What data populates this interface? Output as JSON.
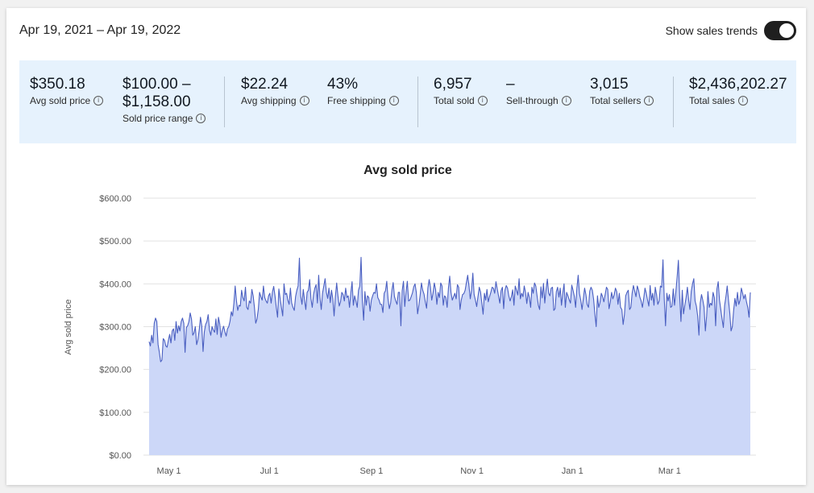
{
  "header": {
    "date_range": "Apr 19, 2021 – Apr 19, 2022",
    "trend_label": "Show sales trends",
    "trend_on": true
  },
  "stats": [
    {
      "value": "$350.18",
      "label": "Avg sold price"
    },
    {
      "value": "$100.00 –",
      "value2": "$1,158.00",
      "label": "Sold price range"
    },
    {
      "value": "$22.24",
      "label": "Avg shipping"
    },
    {
      "value": "43%",
      "label": "Free shipping"
    },
    {
      "value": "6,957",
      "label": "Total sold"
    },
    {
      "value": "–",
      "label": "Sell-through"
    },
    {
      "value": "3,015",
      "label": "Total sellers"
    },
    {
      "value": "$2,436,202.27",
      "label": "Total sales"
    }
  ],
  "info_glyph": "i",
  "colors": {
    "line": "#4a5fc1",
    "fill": "#ccd7f8",
    "panel": "#e6f2fd",
    "toggle": "#1f1f1f"
  },
  "chart_data": {
    "type": "area",
    "title": "Avg sold price",
    "ylabel": "Avg sold price",
    "xlabel": "",
    "ylim": [
      0,
      600
    ],
    "yticks": [
      "$0.00",
      "$100.00",
      "$200.00",
      "$300.00",
      "$400.00",
      "$500.00",
      "$600.00"
    ],
    "xticks": [
      "May 1",
      "Jul 1",
      "Sep 1",
      "Nov 1",
      "Jan 1",
      "Mar 1"
    ],
    "xtick_dates": [
      "2021-05-01",
      "2021-07-01",
      "2021-09-01",
      "2021-11-01",
      "2022-01-01",
      "2022-03-01"
    ],
    "x_start": "2021-04-19",
    "x_end": "2022-04-19",
    "grid": true,
    "series": [
      {
        "values": [
          265,
          255,
          280,
          262,
          308,
          320,
          312,
          258,
          240,
          218,
          222,
          272,
          268,
          255,
          252,
          268,
          282,
          262,
          290,
          295,
          268,
          312,
          285,
          302,
          290,
          312,
          320,
          308,
          240,
          298,
          302,
          312,
          332,
          318,
          280,
          286,
          300,
          258,
          270,
          292,
          322,
          302,
          242,
          288,
          305,
          312,
          328,
          292,
          280,
          300,
          292,
          287,
          318,
          282,
          322,
          306,
          275,
          292,
          301,
          288,
          278,
          295,
          300,
          313,
          335,
          325,
          355,
          395,
          360,
          338,
          350,
          348,
          385,
          368,
          360,
          392,
          345,
          340,
          360,
          355,
          387,
          372,
          345,
          308,
          318,
          340,
          380,
          370,
          362,
          395,
          368,
          360,
          355,
          372,
          378,
          355,
          381,
          394,
          372,
          345,
          322,
          388,
          366,
          345,
          325,
          400,
          375,
          378,
          362,
          352,
          390,
          355,
          345,
          338,
          370,
          385,
          395,
          460,
          372,
          352,
          387,
          362,
          340,
          380,
          385,
          410,
          365,
          345,
          375,
          390,
          398,
          355,
          420,
          368,
          340,
          378,
          395,
          412,
          380,
          366,
          390,
          356,
          385,
          365,
          325,
          370,
          402,
          372,
          348,
          358,
          380,
          375,
          360,
          390,
          368,
          372,
          345,
          378,
          405,
          350,
          372,
          360,
          345,
          385,
          395,
          462,
          360,
          315,
          382,
          350,
          372,
          368,
          336,
          362,
          372,
          380,
          378,
          400,
          368,
          362,
          352,
          352,
          333,
          378,
          384,
          406,
          365,
          342,
          355,
          385,
          403,
          370,
          360,
          352,
          380,
          380,
          302,
          384,
          406,
          347,
          380,
          406,
          360,
          362,
          370,
          379,
          393,
          400,
          380,
          330,
          350,
          374,
          402,
          385,
          376,
          358,
          343,
          390,
          410,
          392,
          362,
          378,
          402,
          387,
          352,
          380,
          368,
          402,
          395,
          350,
          372,
          368,
          345,
          390,
          418,
          380,
          362,
          370,
          378,
          365,
          398,
          392,
          340,
          362,
          375,
          377,
          385,
          403,
          420,
          395,
          365,
          385,
          425,
          375,
          362,
          347,
          370,
          392,
          381,
          355,
          329,
          378,
          362,
          387,
          358,
          370,
          380,
          392,
          390,
          378,
          405,
          388,
          372,
          355,
          384,
          392,
          342,
          385,
          396,
          390,
          372,
          360,
          370,
          386,
          350,
          395,
          385,
          374,
          412,
          365,
          378,
          370,
          395,
          380,
          354,
          380,
          368,
          345,
          392,
          378,
          402,
          395,
          372,
          350,
          340,
          393,
          367,
          401,
          355,
          387,
          411,
          378,
          372,
          390,
          392,
          338,
          342,
          382,
          392,
          369,
          390,
          350,
          378,
          400,
          345,
          380,
          372,
          363,
          355,
          397,
          385,
          371,
          345,
          390,
          420,
          377,
          362,
          340,
          365,
          390,
          375,
          352,
          345,
          383,
          392,
          385,
          364,
          330,
          300,
          372,
          345,
          357,
          378,
          370,
          358,
          375,
          392,
          387,
          342,
          357,
          380,
          365,
          374,
          390,
          382,
          352,
          378,
          345,
          340,
          305,
          328,
          372,
          380,
          385,
          340,
          345,
          378,
          396,
          383,
          370,
          395,
          385,
          369,
          360,
          345,
          366,
          390,
          378,
          362,
          348,
          396,
          362,
          378,
          350,
          392,
          375,
          352,
          360,
          395,
          392,
          456,
          365,
          302,
          378,
          360,
          375,
          345,
          348,
          388,
          350,
          380,
          415,
          455,
          372,
          312,
          385,
          330,
          350,
          368,
          392,
          362,
          340,
          382,
          400,
          412,
          360,
          348,
          325,
          280,
          355,
          375,
          362,
          345,
          290,
          325,
          382,
          345,
          355,
          350,
          380,
          368,
          302,
          388,
          405,
          362,
          340,
          318,
          298,
          350,
          370,
          395,
          362,
          332,
          290,
          300,
          338,
          366,
          348,
          380,
          352,
          362,
          390,
          378,
          365,
          375,
          358,
          345,
          322,
          380
        ]
      }
    ]
  }
}
